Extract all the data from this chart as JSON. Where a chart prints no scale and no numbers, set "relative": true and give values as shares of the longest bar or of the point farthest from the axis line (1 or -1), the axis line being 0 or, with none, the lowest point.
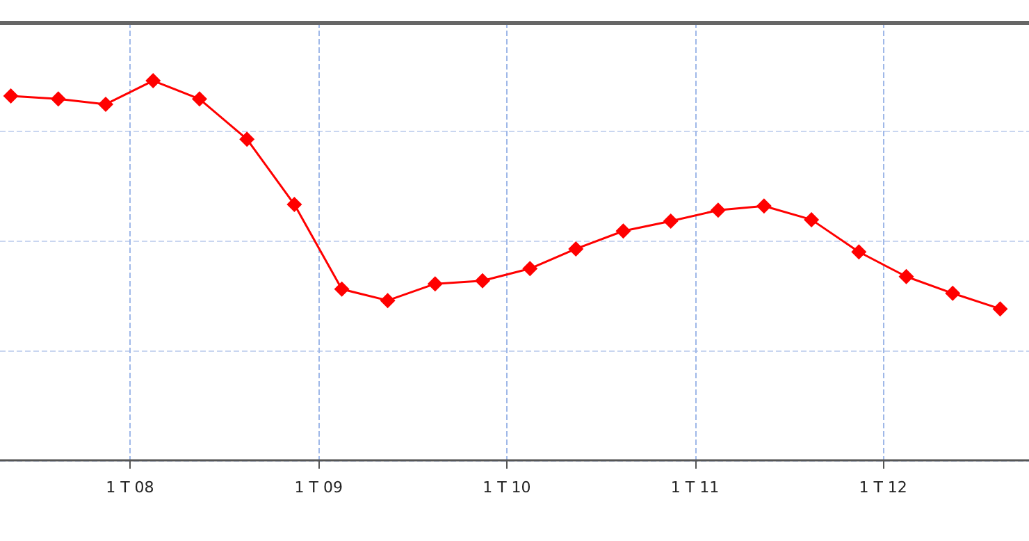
{
  "chart_data": {
    "type": "line",
    "relative": true,
    "color": "#ff0000",
    "marker": "diamond",
    "line_style": "solid",
    "grid": true,
    "tick_labels": "x",
    "x": [
      "2007-05-15",
      "2007-08-15",
      "2007-11-15",
      "2008-02-15",
      "2008-05-15",
      "2008-08-15",
      "2008-11-15",
      "2009-02-15",
      "2009-05-15",
      "2009-08-15",
      "2009-11-15",
      "2010-02-15",
      "2010-05-15",
      "2010-08-15",
      "2010-11-15",
      "2011-02-15",
      "2011-05-15",
      "2011-08-15",
      "2011-11-15",
      "2012-02-15",
      "2012-05-15",
      "2012-08-15"
    ],
    "values": [
      0.96,
      0.952,
      0.938,
      1,
      0.952,
      0.846,
      0.674,
      0.451,
      0.421,
      0.465,
      0.473,
      0.505,
      0.557,
      0.604,
      0.63,
      0.659,
      0.67,
      0.634,
      0.549,
      0.484,
      0.44,
      0.399
    ],
    "xlim": [
      "2007-04-24",
      "2012-10-10"
    ],
    "xticks": [
      {
        "value": "2008-01-01",
        "label": "1 T 08"
      },
      {
        "value": "2009-01-01",
        "label": "1 T 09"
      },
      {
        "value": "2010-01-01",
        "label": "1 T 10"
      },
      {
        "value": "2011-01-01",
        "label": "1 T 11"
      },
      {
        "value": "2012-01-01",
        "label": "1 T 12"
      }
    ]
  }
}
